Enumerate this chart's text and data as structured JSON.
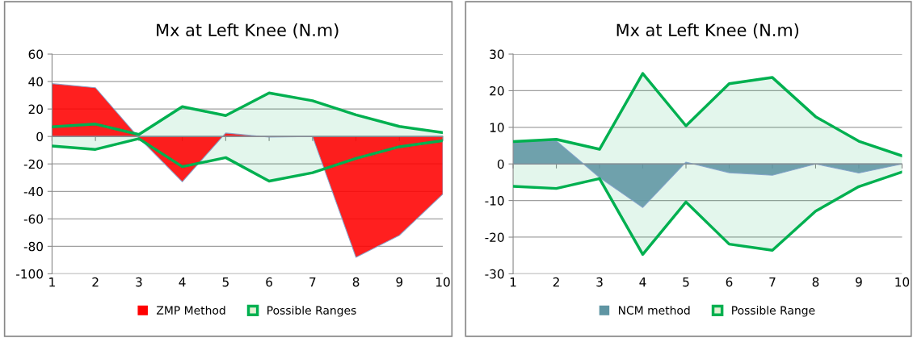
{
  "chart_data": [
    {
      "type": "area",
      "title": "Mx at Left Knee (N.m)",
      "categories": [
        "1",
        "2",
        "3",
        "4",
        "5",
        "6",
        "7",
        "8",
        "9",
        "10"
      ],
      "series": [
        {
          "name": "ZMP Method",
          "color": "#ff0000",
          "values": [
            38.5,
            35.5,
            -1,
            -33,
            2.5,
            -0.5,
            0,
            -88,
            -72,
            -42
          ]
        },
        {
          "name": "Possible Ranges",
          "color": "#00b050",
          "values": [
            7,
            9,
            1.4,
            21.7,
            15.2,
            31.7,
            26,
            15.7,
            7.3,
            2.8
          ]
        },
        {
          "color": "#00b050",
          "values": [
            -7,
            -9.4,
            -1.6,
            -22,
            -15.4,
            -32.5,
            -26.4,
            -16,
            -7.5,
            -3
          ]
        }
      ],
      "ylim": [
        -100,
        60
      ],
      "yticks": [
        -100,
        -80,
        -60,
        -40,
        -20,
        0,
        20,
        40,
        60
      ],
      "grid": "y",
      "legend": "bottom"
    },
    {
      "type": "area",
      "title": "Mx at Left Knee (N.m)",
      "categories": [
        "1",
        "2",
        "3",
        "4",
        "5",
        "6",
        "7",
        "8",
        "9",
        "10"
      ],
      "series": [
        {
          "name": "NCM method",
          "color": "#5f95a3",
          "values": [
            6.1,
            6.3,
            -3.7,
            -11.9,
            0.5,
            -2.4,
            -3.1,
            0,
            -2.5,
            0
          ]
        },
        {
          "name": "Possible Range",
          "color": "#00b050",
          "values": [
            6.1,
            6.7,
            4,
            24.7,
            10.4,
            21.9,
            23.6,
            12.9,
            6.2,
            2.2
          ]
        },
        {
          "color": "#00b050",
          "values": [
            -6.1,
            -6.7,
            -4,
            -24.7,
            -10.4,
            -21.9,
            -23.6,
            -12.9,
            -6.2,
            -2.2
          ]
        }
      ],
      "ylim": [
        -30,
        30
      ],
      "yticks": [
        -30,
        -20,
        -10,
        0,
        10,
        20,
        30
      ],
      "grid": "y",
      "legend": "bottom"
    }
  ]
}
